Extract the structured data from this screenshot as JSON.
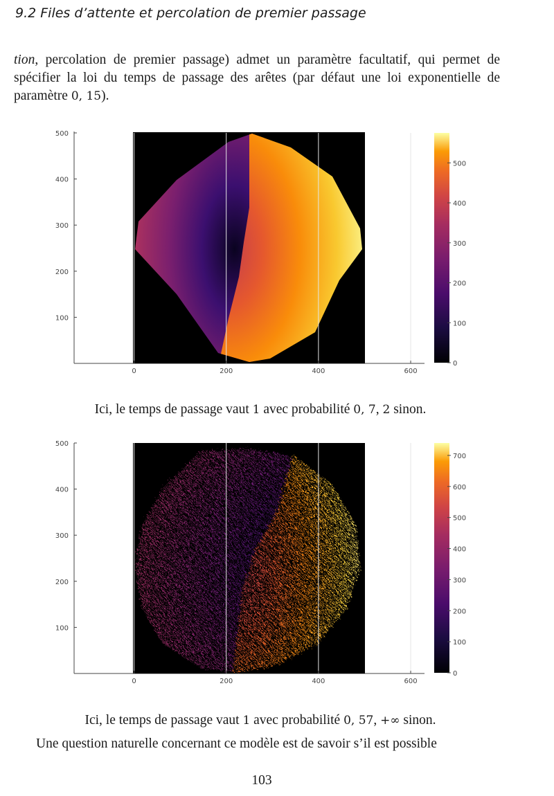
{
  "header": {
    "running_title": "9.2  Files d’attente et percolation de premier passage"
  },
  "paragraph": {
    "italic_start": "tion",
    "text_before_math": ", percolation de premier passage) admet un paramètre facultatif, qui permet de spécifier la loi du temps de passage des arêtes (par défaut une loi exponentielle de paramètre ",
    "math": "0, 15",
    "text_after_math": ")."
  },
  "captions": {
    "caption1_before": "Ici, le temps de passage vaut ",
    "caption1_m1": "1",
    "caption1_mid": " avec probabilité ",
    "caption1_m2": "0, 7",
    "caption1_comma": ", ",
    "caption1_m3": "2",
    "caption1_after": " sinon.",
    "caption2_before": "Ici, le temps de passage vaut ",
    "caption2_m1": "1",
    "caption2_mid": " avec probabilité ",
    "caption2_m2": "0, 57",
    "caption2_comma": ", ",
    "caption2_m3": "+∞",
    "caption2_after": " sinon."
  },
  "last_line": "Une question naturelle concernant ce modèle est de savoir s’il est possible",
  "page_number": "103",
  "colors": {
    "background_black": "#000000",
    "frame": "#444444"
  },
  "chart_data": [
    {
      "type": "heatmap",
      "title": "",
      "xlabel": "",
      "ylabel": "",
      "xlim": [
        -130,
        630
      ],
      "ylim": [
        0,
        500
      ],
      "xticks": [
        "0",
        "200",
        "400",
        "600"
      ],
      "yticks": [
        "100",
        "200",
        "300",
        "400",
        "500"
      ],
      "colorbar": {
        "min": 0,
        "max": 575,
        "ticks": [
          "0",
          "100",
          "200",
          "300",
          "400",
          "500"
        ],
        "colormap": "inferno"
      },
      "grid_extent_x": [
        0,
        500
      ],
      "grid_extent_y": [
        0,
        500
      ],
      "shape": "diamond cluster centered near (240, 250), low values at center, left half purple/magenta, right half orange/yellow"
    },
    {
      "type": "heatmap",
      "title": "",
      "xlabel": "",
      "ylabel": "",
      "xlim": [
        -130,
        630
      ],
      "ylim": [
        0,
        500
      ],
      "xticks": [
        "0",
        "200",
        "400",
        "600"
      ],
      "yticks": [
        "100",
        "200",
        "300",
        "400",
        "500"
      ],
      "colorbar": {
        "min": 0,
        "max": 740,
        "ticks": [
          "0",
          "100",
          "200",
          "300",
          "400",
          "500",
          "600",
          "700"
        ],
        "colormap": "inferno"
      },
      "grid_extent_x": [
        0,
        500
      ],
      "grid_extent_y": [
        0,
        500
      ],
      "shape": "rough disk cluster centered near (240, 250) with holes, left half purple/magenta, right half orange/yellow"
    }
  ]
}
